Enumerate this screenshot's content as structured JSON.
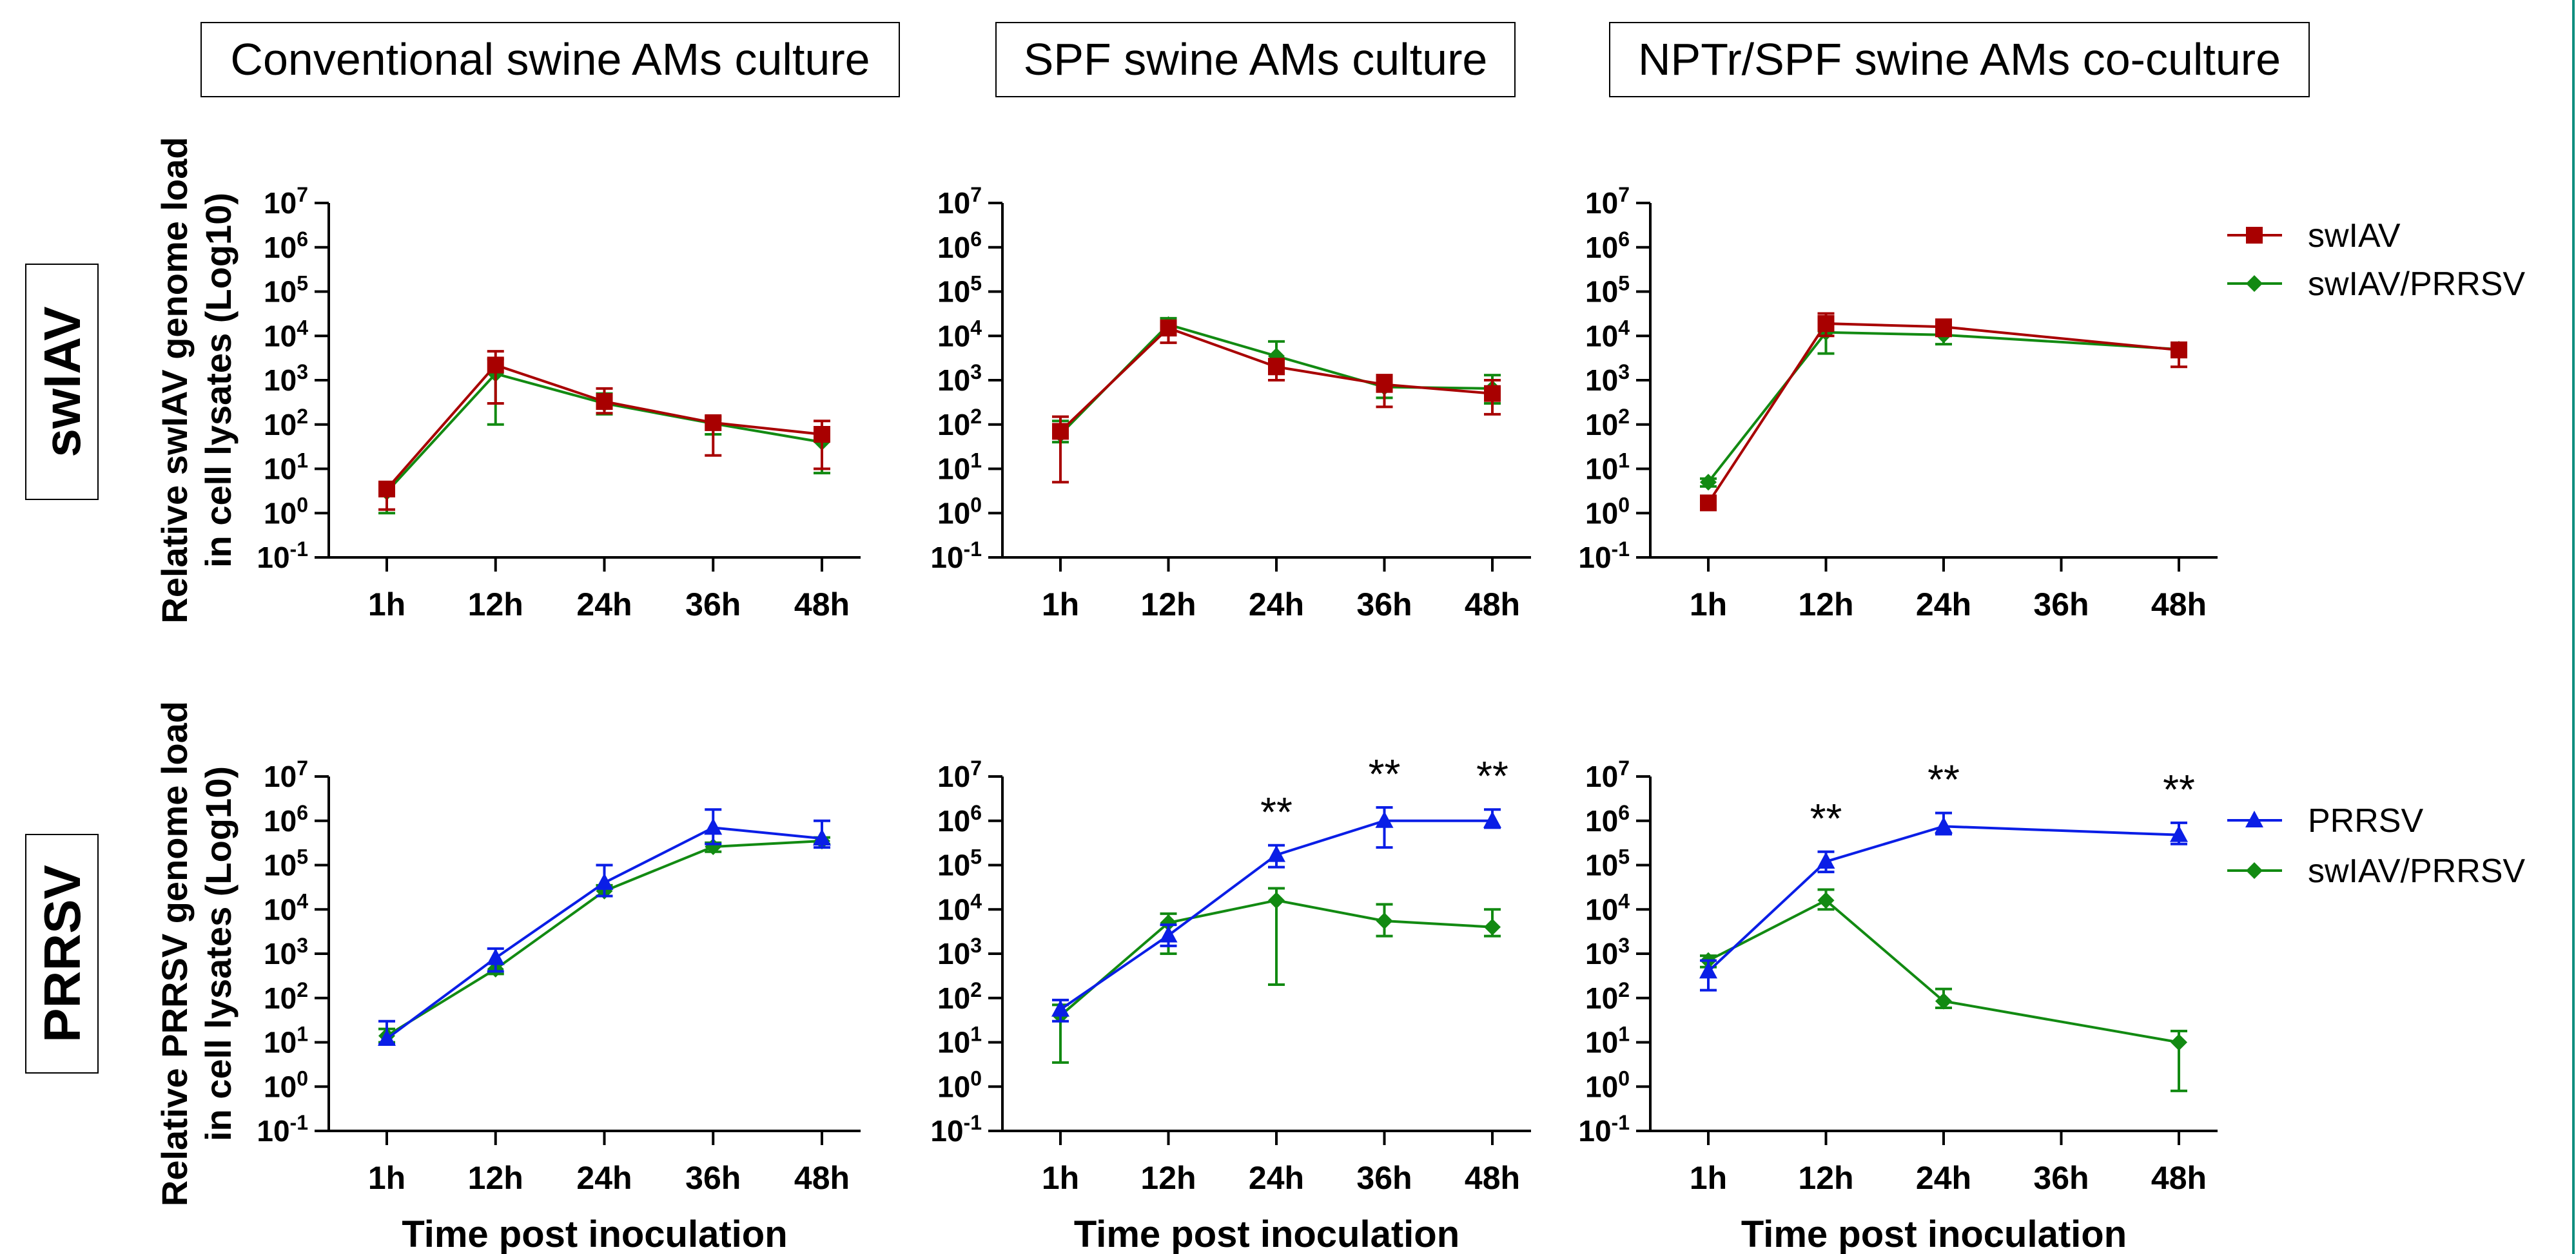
{
  "columns": [
    "Conventional swine AMs culture",
    "SPF swine AMs culture",
    "NPTr/SPF swine AMs co-culture"
  ],
  "rows": [
    "swIAV",
    "PRRSV"
  ],
  "y_labels": {
    "swiav": [
      "Relative swIAV genome load",
      "in cell lysates (Log10)"
    ],
    "prrsv": [
      "Relative PRRSV genome load",
      "in cell lysates (Log10)"
    ]
  },
  "x_label": "Time post inoculation",
  "y_tick_exponents": [
    "-1",
    "0",
    "1",
    "2",
    "3",
    "4",
    "5",
    "6",
    "7"
  ],
  "legends": {
    "swiav": [
      "swIAV",
      "swIAV/PRRSV"
    ],
    "prrsv": [
      "PRRSV",
      "swIAV/PRRSV"
    ]
  },
  "chart_data": [
    {
      "type": "line",
      "row": "swIAV",
      "column": "Conventional swine AMs culture",
      "categories": [
        "1h",
        "12h",
        "24h",
        "36h",
        "48h"
      ],
      "yscale": "log",
      "ylim": [
        0.1,
        10000000
      ],
      "series": [
        {
          "name": "swIAV",
          "color": "#a80000",
          "marker": "square",
          "values": [
            3.5,
            2200,
            330,
            110,
            60
          ],
          "err_low": [
            1.2,
            300,
            180,
            20,
            10
          ],
          "err_high": [
            5,
            4500,
            650,
            150,
            120
          ]
        },
        {
          "name": "swIAV/PRRSV",
          "color": "#128a12",
          "marker": "diamond",
          "values": [
            3,
            1400,
            300,
            105,
            40
          ],
          "err_low": [
            1,
            100,
            170,
            60,
            8
          ],
          "err_high": [
            4,
            3000,
            500,
            130,
            70
          ]
        }
      ],
      "annotations": []
    },
    {
      "type": "line",
      "row": "swIAV",
      "column": "SPF swine AMs culture",
      "categories": [
        "1h",
        "12h",
        "24h",
        "36h",
        "48h"
      ],
      "yscale": "log",
      "ylim": [
        0.1,
        10000000
      ],
      "series": [
        {
          "name": "swIAV",
          "color": "#a80000",
          "marker": "square",
          "values": [
            70,
            15000,
            2000,
            800,
            500
          ],
          "err_low": [
            5,
            7000,
            1000,
            250,
            170
          ],
          "err_high": [
            150,
            22000,
            3000,
            1300,
            1000
          ]
        },
        {
          "name": "swIAV/PRRSV",
          "color": "#128a12",
          "marker": "diamond",
          "values": [
            60,
            18000,
            3500,
            700,
            650
          ],
          "err_low": [
            40,
            12000,
            1500,
            400,
            300
          ],
          "err_high": [
            120,
            25000,
            7500,
            1000,
            1300
          ]
        }
      ],
      "annotations": []
    },
    {
      "type": "line",
      "row": "swIAV",
      "column": "NPTr/SPF swine AMs co-culture",
      "categories": [
        "1h",
        "12h",
        "24h",
        "36h",
        "48h"
      ],
      "yscale": "log",
      "ylim": [
        0.1,
        10000000
      ],
      "series": [
        {
          "name": "swIAV",
          "color": "#a80000",
          "marker": "square",
          "values": [
            1.7,
            19000,
            16000,
            null,
            4800
          ],
          "err_low": [
            1.2,
            10000,
            10000,
            null,
            2000
          ],
          "err_high": [
            2.2,
            32000,
            23000,
            null,
            7000
          ]
        },
        {
          "name": "swIAV/PRRSV",
          "color": "#128a12",
          "marker": "diamond",
          "values": [
            5,
            12000,
            10500,
            null,
            5000
          ],
          "err_low": [
            4,
            4000,
            6500,
            null,
            4000
          ],
          "err_high": [
            6,
            20000,
            15000,
            null,
            6000
          ]
        }
      ],
      "annotations": []
    },
    {
      "type": "line",
      "row": "PRRSV",
      "column": "Conventional swine AMs culture",
      "categories": [
        "1h",
        "12h",
        "24h",
        "36h",
        "48h"
      ],
      "yscale": "log",
      "ylim": [
        0.1,
        10000000
      ],
      "series": [
        {
          "name": "PRRSV",
          "color": "#0a1ee6",
          "marker": "triangle",
          "values": [
            12,
            800,
            40000,
            700000,
            400000
          ],
          "err_low": [
            9,
            400,
            20000,
            300000,
            250000
          ],
          "err_high": [
            30,
            1300,
            100000,
            1800000,
            1000000
          ]
        },
        {
          "name": "swIAV/PRRSV",
          "color": "#128a12",
          "marker": "diamond",
          "values": [
            14,
            450,
            26000,
            260000,
            350000
          ],
          "err_low": [
            10,
            350,
            20000,
            200000,
            300000
          ],
          "err_high": [
            20,
            600,
            35000,
            320000,
            420000
          ]
        }
      ],
      "annotations": []
    },
    {
      "type": "line",
      "row": "PRRSV",
      "column": "SPF swine AMs culture",
      "categories": [
        "1h",
        "12h",
        "24h",
        "36h",
        "48h"
      ],
      "yscale": "log",
      "ylim": [
        0.1,
        10000000
      ],
      "series": [
        {
          "name": "PRRSV",
          "color": "#0a1ee6",
          "marker": "triangle",
          "values": [
            55,
            2600,
            170000,
            1000000,
            1000000
          ],
          "err_low": [
            30,
            1500,
            90000,
            250000,
            700000
          ],
          "err_high": [
            90,
            4500,
            280000,
            2000000,
            1800000
          ]
        },
        {
          "name": "swIAV/PRRSV",
          "color": "#128a12",
          "marker": "diamond",
          "values": [
            40,
            5000,
            16000,
            5500,
            4000
          ],
          "err_low": [
            3.5,
            1000,
            200,
            2500,
            2500
          ],
          "err_high": [
            70,
            8000,
            30000,
            13000,
            10000
          ]
        }
      ],
      "annotations": [
        {
          "category": "24h",
          "text": "**"
        },
        {
          "category": "36h",
          "text": "**"
        },
        {
          "category": "48h",
          "text": "**"
        }
      ]
    },
    {
      "type": "line",
      "row": "PRRSV",
      "column": "NPTr/SPF swine AMs co-culture",
      "categories": [
        "1h",
        "12h",
        "24h",
        "36h",
        "48h"
      ],
      "yscale": "log",
      "ylim": [
        0.1,
        10000000
      ],
      "series": [
        {
          "name": "PRRSV",
          "color": "#0a1ee6",
          "marker": "triangle",
          "values": [
            400,
            120000,
            750000,
            null,
            480000
          ],
          "err_low": [
            150,
            70000,
            500000,
            null,
            300000
          ],
          "err_high": [
            700,
            200000,
            1500000,
            null,
            900000
          ]
        },
        {
          "name": "swIAV/PRRSV",
          "color": "#128a12",
          "marker": "diamond",
          "values": [
            700,
            16000,
            85,
            null,
            10
          ],
          "err_low": [
            500,
            10000,
            60,
            null,
            0.8
          ],
          "err_high": [
            900,
            28000,
            160,
            null,
            18
          ]
        }
      ],
      "annotations": [
        {
          "category": "12h",
          "text": "**"
        },
        {
          "category": "24h",
          "text": "**"
        },
        {
          "category": "48h",
          "text": "**"
        }
      ]
    }
  ]
}
